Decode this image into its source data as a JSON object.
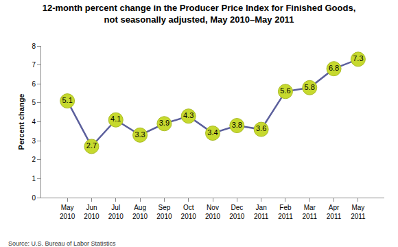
{
  "chart_data": {
    "type": "line",
    "title": "12-month percent change in the Producer Price Index for Finished Goods,\nnot seasonally adjusted, May 2010–May 2011",
    "y_label": "Percent change",
    "source": "Source: U.S. Bureau of Labor Statistics",
    "categories": [
      "May 2010",
      "Jun 2010",
      "Jul 2010",
      "Aug 2010",
      "Sep 2010",
      "Oct 2010",
      "Nov 2010",
      "Dec 2010",
      "Jan 2011",
      "Feb 2011",
      "Mar 2011",
      "Apr 2011",
      "May 2011"
    ],
    "values": [
      5.1,
      2.7,
      4.1,
      3.3,
      3.9,
      4.3,
      3.4,
      3.8,
      3.6,
      5.6,
      5.8,
      6.8,
      7.3
    ],
    "color": "#5b5f9c",
    "marker": "circle",
    "ylim": [
      0,
      8
    ],
    "yticks": [
      0,
      1,
      2,
      3,
      4,
      5,
      6,
      7,
      8
    ],
    "grid": false,
    "data_labels": true
  }
}
